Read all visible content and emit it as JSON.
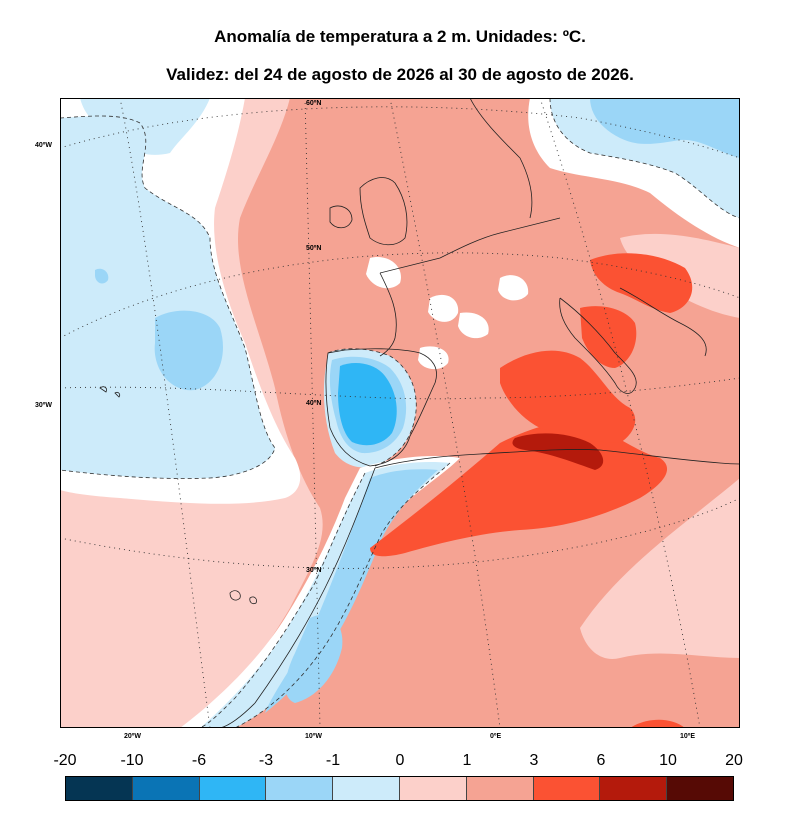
{
  "header": {
    "title": "Anomalía de temperatura a 2 m. Unidades: ºC.",
    "subtitle": "Validez: del 24 de agosto de 2026 al 30 de agosto de 2026."
  },
  "map": {
    "lat_labels": [
      "60ºN",
      "50ºN",
      "40ºN",
      "30ºN"
    ],
    "lon_labels_left": [
      "40ºW",
      "30ºW"
    ],
    "lon_labels_bottom": [
      "20ºW",
      "10ºW",
      "0ºE",
      "10ºE"
    ]
  },
  "colorbar": {
    "ticks": [
      "-20",
      "-10",
      "-6",
      "-3",
      "-1",
      "0",
      "1",
      "3",
      "6",
      "10",
      "20"
    ],
    "colors": [
      "#053553",
      "#0a74b5",
      "#2fb6f5",
      "#9bd6f7",
      "#cdebfa",
      "#fcd0ca",
      "#f5a393",
      "#fb5233",
      "#b41a0c",
      "#560a05"
    ]
  },
  "palette": {
    "ocean_light_blue": "#cdebfa",
    "blue_mid": "#9bd6f7",
    "blue_strong": "#2fb6f5",
    "pink_light": "#fcd0ca",
    "salmon": "#f5a393",
    "red": "#fb5233",
    "dark_red": "#b41a0c"
  }
}
